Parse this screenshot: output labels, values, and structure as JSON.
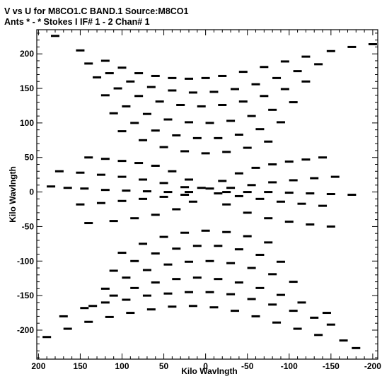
{
  "chart_data": {
    "type": "scatter",
    "title_line1": "V vs U for M8CO1.C BAND.1   Source:M8CO1",
    "title_line2": "Ants * - *    Stokes I   IF# 1 - 2   Chan# 1",
    "xlabel": "Kilo Wavlngth",
    "ylabel": "Kilo Wavlngth",
    "xlim": [
      202,
      -206
    ],
    "ylim": [
      -242,
      235
    ],
    "x_ticks": [
      200,
      150,
      100,
      50,
      0,
      -50,
      -100,
      -150,
      -200
    ],
    "x_tick_labels": [
      "200",
      "150",
      "100",
      "50",
      "0",
      "-50",
      "-100",
      "-150",
      "-200"
    ],
    "y_ticks": [
      200,
      150,
      100,
      50,
      0,
      -50,
      -100,
      -150,
      -200
    ],
    "y_tick_labels": [
      "200",
      "150",
      "100",
      "50",
      "0",
      "-50",
      "-100",
      "-150",
      "-200"
    ],
    "grid": false,
    "marker": "dash",
    "series": [
      {
        "points": [
          [
            180,
            226
          ],
          [
            150,
            205
          ],
          [
            120,
            190
          ],
          [
            100,
            180
          ],
          [
            80,
            172
          ],
          [
            60,
            168
          ],
          [
            40,
            165
          ],
          [
            20,
            164
          ],
          [
            0,
            165
          ],
          [
            -20,
            168
          ],
          [
            -45,
            174
          ],
          [
            -70,
            181
          ],
          [
            -95,
            189
          ],
          [
            -120,
            196
          ],
          [
            -150,
            204
          ],
          [
            -175,
            210
          ],
          [
            -200,
            214
          ],
          [
            140,
            186
          ],
          [
            115,
            172
          ],
          [
            90,
            160
          ],
          [
            65,
            152
          ],
          [
            40,
            147
          ],
          [
            15,
            144
          ],
          [
            -10,
            145
          ],
          [
            -35,
            149
          ],
          [
            -60,
            156
          ],
          [
            -85,
            165
          ],
          [
            -110,
            175
          ],
          [
            -135,
            185
          ],
          [
            130,
            166
          ],
          [
            105,
            150
          ],
          [
            80,
            139
          ],
          [
            55,
            131
          ],
          [
            30,
            126
          ],
          [
            5,
            124
          ],
          [
            -20,
            126
          ],
          [
            -45,
            131
          ],
          [
            -70,
            139
          ],
          [
            -95,
            149
          ],
          [
            -120,
            160
          ],
          [
            120,
            140
          ],
          [
            95,
            124
          ],
          [
            70,
            113
          ],
          [
            45,
            105
          ],
          [
            20,
            101
          ],
          [
            -5,
            100
          ],
          [
            -30,
            103
          ],
          [
            -55,
            110
          ],
          [
            -80,
            119
          ],
          [
            -105,
            130
          ],
          [
            110,
            114
          ],
          [
            85,
            100
          ],
          [
            60,
            89
          ],
          [
            35,
            82
          ],
          [
            10,
            78
          ],
          [
            -15,
            78
          ],
          [
            -40,
            83
          ],
          [
            -65,
            91
          ],
          [
            -90,
            101
          ],
          [
            100,
            88
          ],
          [
            75,
            75
          ],
          [
            50,
            65
          ],
          [
            25,
            59
          ],
          [
            0,
            56
          ],
          [
            -25,
            58
          ],
          [
            -50,
            64
          ],
          [
            -75,
            73
          ],
          [
            140,
            50
          ],
          [
            120,
            48
          ],
          [
            100,
            45
          ],
          [
            80,
            42
          ],
          [
            60,
            38
          ],
          [
            40,
            30
          ],
          [
            20,
            18
          ],
          [
            5,
            6
          ],
          [
            -140,
            50
          ],
          [
            -120,
            47
          ],
          [
            -100,
            44
          ],
          [
            -80,
            40
          ],
          [
            -60,
            35
          ],
          [
            -40,
            27
          ],
          [
            -20,
            16
          ],
          [
            -5,
            5
          ],
          [
            175,
            30
          ],
          [
            150,
            28
          ],
          [
            125,
            25
          ],
          [
            100,
            22
          ],
          [
            75,
            18
          ],
          [
            50,
            13
          ],
          [
            25,
            7
          ],
          [
            -155,
            22
          ],
          [
            -130,
            20
          ],
          [
            -105,
            17
          ],
          [
            -80,
            14
          ],
          [
            -55,
            10
          ],
          [
            -30,
            6
          ],
          [
            185,
            8
          ],
          [
            165,
            6
          ],
          [
            145,
            5
          ],
          [
            120,
            3
          ],
          [
            95,
            2
          ],
          [
            70,
            1
          ],
          [
            45,
            0
          ],
          [
            20,
            0
          ],
          [
            -175,
            -4
          ],
          [
            -150,
            -3
          ],
          [
            -125,
            -2
          ],
          [
            -100,
            -1
          ],
          [
            -75,
            0
          ],
          [
            -50,
            0
          ],
          [
            -25,
            0
          ],
          [
            150,
            -18
          ],
          [
            125,
            -16
          ],
          [
            100,
            -13
          ],
          [
            75,
            -10
          ],
          [
            50,
            -7
          ],
          [
            25,
            -4
          ],
          [
            -140,
            -20
          ],
          [
            -115,
            -17
          ],
          [
            -90,
            -14
          ],
          [
            -65,
            -10
          ],
          [
            -40,
            -6
          ],
          [
            -15,
            -2
          ],
          [
            140,
            -45
          ],
          [
            110,
            -42
          ],
          [
            85,
            -38
          ],
          [
            60,
            -33
          ],
          [
            35,
            -25
          ],
          [
            15,
            -14
          ],
          [
            -150,
            -50
          ],
          [
            -125,
            -47
          ],
          [
            -100,
            -43
          ],
          [
            -75,
            -38
          ],
          [
            -50,
            -30
          ],
          [
            -25,
            -18
          ],
          [
            100,
            -88
          ],
          [
            75,
            -75
          ],
          [
            50,
            -65
          ],
          [
            25,
            -59
          ],
          [
            0,
            -56
          ],
          [
            -25,
            -58
          ],
          [
            -50,
            -64
          ],
          [
            -75,
            -73
          ],
          [
            110,
            -114
          ],
          [
            85,
            -100
          ],
          [
            60,
            -89
          ],
          [
            35,
            -82
          ],
          [
            10,
            -78
          ],
          [
            -15,
            -78
          ],
          [
            -40,
            -83
          ],
          [
            -65,
            -91
          ],
          [
            -90,
            -101
          ],
          [
            120,
            -140
          ],
          [
            95,
            -124
          ],
          [
            70,
            -113
          ],
          [
            45,
            -105
          ],
          [
            20,
            -101
          ],
          [
            -5,
            -100
          ],
          [
            -30,
            -103
          ],
          [
            -55,
            -110
          ],
          [
            -80,
            -119
          ],
          [
            -105,
            -130
          ],
          [
            135,
            -165
          ],
          [
            110,
            -150
          ],
          [
            85,
            -139
          ],
          [
            60,
            -131
          ],
          [
            35,
            -126
          ],
          [
            10,
            -124
          ],
          [
            -15,
            -126
          ],
          [
            -40,
            -131
          ],
          [
            -65,
            -139
          ],
          [
            -90,
            -149
          ],
          [
            -115,
            -160
          ],
          [
            -145,
            -175
          ],
          [
            170,
            -180
          ],
          [
            145,
            -168
          ],
          [
            120,
            -160
          ],
          [
            95,
            -156
          ],
          [
            70,
            -150
          ],
          [
            45,
            -147
          ],
          [
            20,
            -145
          ],
          [
            -5,
            -145
          ],
          [
            -30,
            -148
          ],
          [
            -55,
            -155
          ],
          [
            -80,
            -163
          ],
          [
            -105,
            -172
          ],
          [
            -130,
            -182
          ],
          [
            -150,
            -192
          ],
          [
            190,
            -210
          ],
          [
            165,
            -198
          ],
          [
            140,
            -188
          ],
          [
            115,
            -181
          ],
          [
            90,
            -175
          ],
          [
            65,
            -170
          ],
          [
            40,
            -166
          ],
          [
            15,
            -165
          ],
          [
            -10,
            -167
          ],
          [
            -35,
            -172
          ],
          [
            -60,
            -180
          ],
          [
            -85,
            -189
          ],
          [
            -110,
            -198
          ],
          [
            -135,
            -207
          ],
          [
            -165,
            -215
          ],
          [
            -180,
            -226
          ]
        ]
      }
    ]
  }
}
